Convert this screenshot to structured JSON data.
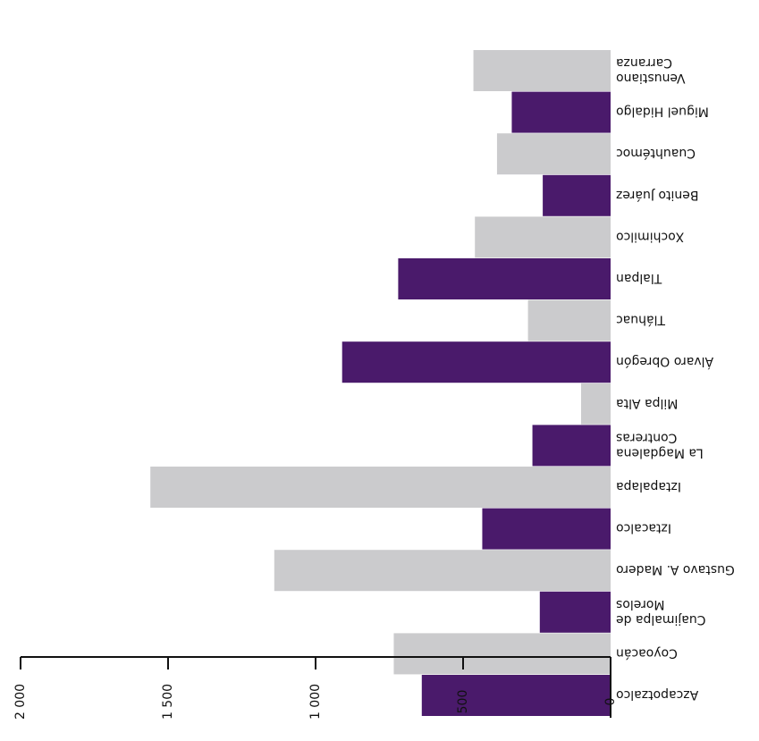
{
  "chart_data": {
    "type": "bar",
    "orientation": "horizontal",
    "rotated_180": true,
    "categories": [
      "Azcapotzalco",
      "Coyoacán",
      "Cuajimalpa de Morelos",
      "Gustavo A. Madero",
      "Iztacalco",
      "Iztapalapa",
      "La Magdalena Contreras",
      "Milpa Alta",
      "Álvaro Obregón",
      "Tláhuac",
      "Tlalpan",
      "Xochimilco",
      "Benito Juárez",
      "Cuauhtémoc",
      "Miguel Hidalgo",
      "Venustiano Carranza"
    ],
    "values": [
      640,
      735,
      240,
      1140,
      435,
      1560,
      265,
      100,
      910,
      280,
      720,
      460,
      230,
      385,
      335,
      465
    ],
    "bar_colors": [
      "#4a1a6b",
      "#cbcbcd",
      "#4a1a6b",
      "#cbcbcd",
      "#4a1a6b",
      "#cbcbcd",
      "#4a1a6b",
      "#cbcbcd",
      "#4a1a6b",
      "#cbcbcd",
      "#4a1a6b",
      "#cbcbcd",
      "#4a1a6b",
      "#cbcbcd",
      "#4a1a6b",
      "#cbcbcd"
    ],
    "axis": {
      "ticks": [
        0,
        500,
        1000,
        1500,
        2000
      ],
      "tick_labels": [
        "0",
        "500",
        "1 000",
        "1 500",
        "2 000"
      ],
      "range": [
        0,
        2000
      ]
    },
    "grid": false,
    "colors": {
      "purple": "#4a1a6b",
      "gray": "#cbcbcd",
      "axis": "#111111"
    }
  }
}
